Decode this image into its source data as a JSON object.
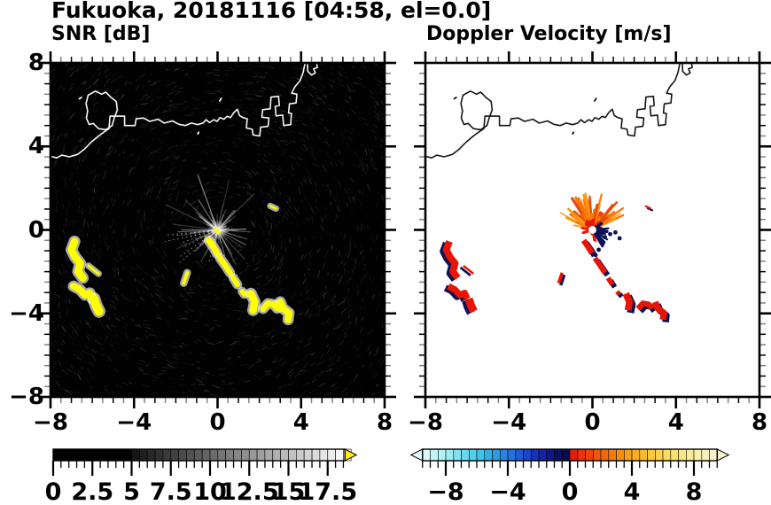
{
  "header": {
    "title": "Fukuoka, 20181116 [04:58, el=0.0]"
  },
  "panels": {
    "snr": {
      "label": "SNR [dB]",
      "x_tick_labels": [
        "−8",
        "−4",
        "0",
        "4",
        "8"
      ],
      "y_tick_labels": [
        "8",
        "4",
        "0",
        "−4",
        "−8"
      ]
    },
    "doppler": {
      "label": "Doppler Velocity [m/s]",
      "x_tick_labels": [
        "−8",
        "−4",
        "0",
        "4",
        "8"
      ]
    }
  },
  "colorbars": {
    "snr": {
      "tick_labels": [
        "0",
        "2.5",
        "5",
        "7.5",
        "10",
        "12.5",
        "15",
        "17.5"
      ],
      "tick_values": [
        0,
        2.5,
        5,
        7.5,
        10,
        12.5,
        15,
        17.5
      ],
      "range": [
        0,
        18.6
      ],
      "black_until": 5,
      "ramp_start": "#121212",
      "ramp_end": "#fafafa",
      "over_arrow_color": "#ffee00"
    },
    "doppler": {
      "tick_labels": [
        "−8",
        "−4",
        "0",
        "4",
        "8"
      ],
      "tick_values": [
        -8,
        -4,
        0,
        4,
        8
      ],
      "range": [
        -9.5,
        9.5
      ],
      "neg_stops": [
        "#e2fbfb",
        "#bff4f6",
        "#94e9f2",
        "#62d8ee",
        "#3cc2ea",
        "#2a9ce4",
        "#2472de",
        "#1d46d2",
        "#1526ae",
        "#0b1270",
        "#070a3e"
      ],
      "pos_stops": [
        "#e51507",
        "#ef3d06",
        "#f56506",
        "#f88b0c",
        "#faae1e",
        "#fbc93a",
        "#fadd5e",
        "#f9e98c",
        "#f8f0b4",
        "#f6f3d2"
      ],
      "under_arrow_color": "#e2fbfb",
      "over_arrow_color": "#f6f3d2"
    }
  },
  "colors": {
    "snr_echo": "#ffff00",
    "snr_echo_halo": "#ffffff",
    "dop_pos_echo": "#e81505",
    "dop_neg_echo": "#0c1055",
    "fan_orange": [
      "#e84808",
      "#f87808",
      "#fa9818"
    ],
    "coast_snr": "#f8f8f8",
    "coast_dop": "#141414",
    "panel_bg_snr": "#020202",
    "panel_bg_dop": "#ffffff"
  },
  "chart_data": [
    {
      "type": "heatmap",
      "title": "SNR [dB]",
      "xlim": [
        -8,
        8
      ],
      "ylim": [
        -8,
        8
      ],
      "x_ticks": [
        -8,
        -4,
        0,
        4,
        8
      ],
      "y_ticks": [
        8,
        4,
        0,
        -4,
        -8
      ],
      "grid": false,
      "colorbar": {
        "range": [
          0,
          18.6
        ],
        "tick_values": [
          0,
          2.5,
          5,
          7.5,
          10,
          12.5,
          15,
          17.5
        ],
        "scheme": "black to white grayscale, yellow over-arrow (>18.5 dB)"
      },
      "background": "black speckle noise (~0-3 dB)",
      "radar_site": [
        0,
        0
      ],
      "clutter": "radial gray ground-clutter starburst centered on radar site, ~2 units radius, brightest fan pointing up",
      "coastline_overlay": {
        "island": [
          [
            -6.3,
            6.05
          ],
          [
            -6.2,
            6.45
          ],
          [
            -5.85,
            6.65
          ],
          [
            -5.55,
            6.5
          ],
          [
            -5.35,
            6.6
          ],
          [
            -5.1,
            6.35
          ],
          [
            -4.85,
            6.15
          ],
          [
            -4.8,
            5.75
          ],
          [
            -4.95,
            5.35
          ],
          [
            -5.05,
            5.0
          ],
          [
            -5.35,
            4.8
          ],
          [
            -5.7,
            4.85
          ],
          [
            -5.95,
            5.1
          ],
          [
            -6.15,
            5.05
          ],
          [
            -6.28,
            5.35
          ],
          [
            -6.22,
            5.7
          ],
          [
            -6.3,
            6.05
          ]
        ],
        "mainland": [
          [
            -8.1,
            3.55
          ],
          [
            -7.7,
            3.45
          ],
          [
            -7.45,
            3.58
          ],
          [
            -7.1,
            3.5
          ],
          [
            -6.7,
            3.62
          ],
          [
            -6.4,
            3.85
          ],
          [
            -6.05,
            4.2
          ],
          [
            -5.7,
            4.5
          ],
          [
            -5.4,
            4.72
          ],
          [
            -5.2,
            4.85
          ],
          [
            -5.15,
            5.45
          ],
          [
            -4.45,
            5.45
          ],
          [
            -4.45,
            5.0
          ],
          [
            -3.95,
            5.0
          ],
          [
            -3.9,
            5.32
          ],
          [
            -3.55,
            5.36
          ],
          [
            -3.25,
            5.2
          ],
          [
            -2.85,
            5.3
          ],
          [
            -2.55,
            5.12
          ],
          [
            -2.15,
            5.22
          ],
          [
            -1.85,
            5.06
          ],
          [
            -1.55,
            5.0
          ],
          [
            -1.25,
            5.12
          ],
          [
            -0.95,
            5.04
          ],
          [
            -0.7,
            5.12
          ],
          [
            -0.55,
            5.28
          ],
          [
            -0.38,
            5.14
          ],
          [
            -0.18,
            5.28
          ],
          [
            -0.02,
            5.2
          ],
          [
            0.12,
            5.38
          ],
          [
            0.3,
            5.3
          ],
          [
            0.46,
            5.44
          ],
          [
            0.62,
            5.38
          ],
          [
            0.78,
            5.62
          ],
          [
            0.95,
            5.78
          ],
          [
            1.05,
            5.48
          ],
          [
            1.22,
            5.38
          ],
          [
            1.42,
            5.32
          ],
          [
            1.38,
            4.88
          ],
          [
            1.66,
            4.82
          ],
          [
            1.7,
            4.55
          ],
          [
            2.02,
            4.5
          ],
          [
            2.06,
            4.92
          ],
          [
            2.42,
            4.96
          ],
          [
            2.46,
            5.36
          ],
          [
            2.12,
            5.4
          ],
          [
            2.16,
            5.76
          ],
          [
            2.52,
            5.8
          ],
          [
            2.56,
            6.36
          ],
          [
            2.92,
            6.4
          ],
          [
            2.96,
            5.96
          ],
          [
            2.76,
            5.92
          ],
          [
            2.8,
            5.46
          ],
          [
            3.12,
            5.5
          ],
          [
            3.16,
            5.0
          ],
          [
            3.5,
            5.04
          ],
          [
            3.54,
            5.58
          ],
          [
            3.4,
            5.6
          ],
          [
            3.44,
            6.04
          ],
          [
            3.76,
            6.08
          ],
          [
            3.8,
            6.5
          ],
          [
            3.55,
            6.55
          ],
          [
            3.7,
            6.85
          ],
          [
            3.95,
            7.15
          ],
          [
            4.1,
            7.55
          ],
          [
            4.18,
            7.95
          ],
          [
            4.12,
            8.15
          ]
        ],
        "harbor_hook": [
          [
            4.3,
            8.15
          ],
          [
            4.32,
            7.6
          ],
          [
            4.5,
            7.42
          ],
          [
            4.68,
            7.52
          ],
          [
            4.6,
            7.72
          ],
          [
            4.78,
            7.78
          ],
          [
            4.72,
            8.15
          ]
        ],
        "small_marks": [
          [
            [
              -6.62,
              6.28
            ],
            [
              -6.52,
              6.35
            ]
          ],
          [
            [
              0.1,
              6.18
            ],
            [
              0.18,
              6.3
            ]
          ],
          [
            [
              -0.95,
              4.6
            ],
            [
              -0.9,
              4.68
            ]
          ]
        ]
      },
      "echoes_high_snr": {
        "west_cluster": [
          {
            "pts": [
              [
                -6.85,
                -0.55
              ],
              [
                -7.0,
                -0.95
              ],
              [
                -6.82,
                -1.3
              ],
              [
                -6.58,
                -1.6
              ],
              [
                -6.68,
                -2.0
              ],
              [
                -6.45,
                -2.3
              ]
            ],
            "w": 0.36
          },
          {
            "pts": [
              [
                -6.9,
                -2.7
              ],
              [
                -6.6,
                -2.85
              ],
              [
                -6.35,
                -3.12
              ],
              [
                -6.12,
                -3.02
              ],
              [
                -6.0,
                -3.3
              ]
            ],
            "w": 0.34
          },
          {
            "pts": [
              [
                -5.92,
                -3.3
              ],
              [
                -5.82,
                -3.62
              ],
              [
                -5.68,
                -3.9
              ]
            ],
            "w": 0.42
          },
          {
            "pts": [
              [
                -6.18,
                -1.72
              ],
              [
                -5.7,
                -2.1
              ]
            ],
            "w": 0.12
          }
        ],
        "southeast_chain": [
          {
            "pts": [
              [
                -0.42,
                -0.5
              ],
              [
                -0.18,
                -0.85
              ],
              [
                -0.02,
                -1.12
              ]
            ],
            "w": 0.3
          },
          {
            "pts": [
              [
                0.12,
                -1.35
              ],
              [
                0.42,
                -1.78
              ],
              [
                0.6,
                -2.05
              ]
            ],
            "w": 0.28
          },
          {
            "pts": [
              [
                0.75,
                -2.3
              ],
              [
                0.95,
                -2.62
              ]
            ],
            "w": 0.26
          },
          {
            "pts": [
              [
                1.18,
                -2.95
              ],
              [
                1.28,
                -3.08
              ]
            ],
            "w": 0.24
          },
          {
            "pts": [
              [
                1.6,
                -3.05
              ],
              [
                1.78,
                -3.45
              ],
              [
                1.7,
                -3.85
              ]
            ],
            "w": 0.36
          },
          {
            "pts": [
              [
                2.18,
                -3.78
              ],
              [
                2.42,
                -3.52
              ],
              [
                2.68,
                -3.56
              ],
              [
                2.85,
                -3.76
              ]
            ],
            "w": 0.3
          },
          {
            "pts": [
              [
                3.0,
                -3.45
              ],
              [
                3.12,
                -3.75
              ],
              [
                3.42,
                -3.98
              ],
              [
                3.38,
                -4.3
              ]
            ],
            "w": 0.34
          }
        ],
        "isolated": [
          {
            "pts": [
              [
                -1.45,
                -2.05
              ],
              [
                -1.62,
                -2.55
              ]
            ],
            "w": 0.16
          },
          {
            "pts": [
              [
                2.52,
                1.15
              ],
              [
                2.8,
                1.02
              ]
            ],
            "w": 0.1
          }
        ],
        "center_dash": {
          "pts": [
            [
              -0.12,
              0.02
            ],
            [
              0.06,
              -0.12
            ]
          ],
          "w": 0.16
        }
      }
    },
    {
      "type": "heatmap",
      "title": "Doppler Velocity [m/s]",
      "xlim": [
        -8,
        8
      ],
      "ylim": [
        -8,
        8
      ],
      "x_ticks": [
        -8,
        -4,
        0,
        4,
        8
      ],
      "y_ticks": [
        8,
        4,
        0,
        -4,
        -8
      ],
      "grid": false,
      "colorbar": {
        "range": [
          -9.5,
          9.5
        ],
        "tick_values": [
          -8,
          -4,
          0,
          4,
          8
        ],
        "scheme": "pale-cyan→cyan→blue→navy for negative, red→orange→yellow→cream for positive, arrows both ends"
      },
      "background": "white (no-echo gates blank)",
      "radar_site": [
        0,
        0
      ],
      "velocity_pattern": "orange fan (+4..+8 m/s) pointing up from radar site with white hole at center; echo cells elsewhere paired red (+3..+6 m/s) and navy (−6..−9 m/s); same echo locations as SNR panel",
      "navy_gates_near_center": [
        [
          0.35,
          -0.2
        ],
        [
          0.6,
          -0.35
        ],
        [
          0.85,
          -0.2
        ],
        [
          0.5,
          -0.62
        ],
        [
          0.3,
          -0.95
        ],
        [
          0.15,
          -1.2
        ],
        [
          1.1,
          -0.12
        ],
        [
          1.3,
          -0.4
        ]
      ]
    }
  ]
}
